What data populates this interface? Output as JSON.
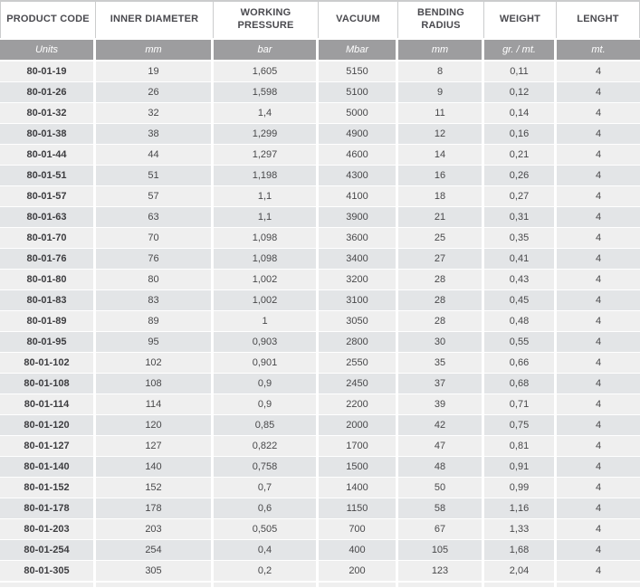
{
  "table": {
    "header": [
      "PRODUCT CODE",
      "INNER DIAMETER",
      "WORKING PRESSURE",
      "VACUUM",
      "BENDING RADIUS",
      "WEIGHT",
      "LENGHT"
    ],
    "units": [
      "Units",
      "mm",
      "bar",
      "Mbar",
      "mm",
      "gr. / mt.",
      "mt."
    ],
    "rows": [
      [
        "80-01-19",
        "19",
        "1,605",
        "5150",
        "8",
        "0,11",
        "4"
      ],
      [
        "80-01-26",
        "26",
        "1,598",
        "5100",
        "9",
        "0,12",
        "4"
      ],
      [
        "80-01-32",
        "32",
        "1,4",
        "5000",
        "11",
        "0,14",
        "4"
      ],
      [
        "80-01-38",
        "38",
        "1,299",
        "4900",
        "12",
        "0,16",
        "4"
      ],
      [
        "80-01-44",
        "44",
        "1,297",
        "4600",
        "14",
        "0,21",
        "4"
      ],
      [
        "80-01-51",
        "51",
        "1,198",
        "4300",
        "16",
        "0,26",
        "4"
      ],
      [
        "80-01-57",
        "57",
        "1,1",
        "4100",
        "18",
        "0,27",
        "4"
      ],
      [
        "80-01-63",
        "63",
        "1,1",
        "3900",
        "21",
        "0,31",
        "4"
      ],
      [
        "80-01-70",
        "70",
        "1,098",
        "3600",
        "25",
        "0,35",
        "4"
      ],
      [
        "80-01-76",
        "76",
        "1,098",
        "3400",
        "27",
        "0,41",
        "4"
      ],
      [
        "80-01-80",
        "80",
        "1,002",
        "3200",
        "28",
        "0,43",
        "4"
      ],
      [
        "80-01-83",
        "83",
        "1,002",
        "3100",
        "28",
        "0,45",
        "4"
      ],
      [
        "80-01-89",
        "89",
        "1",
        "3050",
        "28",
        "0,48",
        "4"
      ],
      [
        "80-01-95",
        "95",
        "0,903",
        "2800",
        "30",
        "0,55",
        "4"
      ],
      [
        "80-01-102",
        "102",
        "0,901",
        "2550",
        "35",
        "0,66",
        "4"
      ],
      [
        "80-01-108",
        "108",
        "0,9",
        "2450",
        "37",
        "0,68",
        "4"
      ],
      [
        "80-01-114",
        "114",
        "0,9",
        "2200",
        "39",
        "0,71",
        "4"
      ],
      [
        "80-01-120",
        "120",
        "0,85",
        "2000",
        "42",
        "0,75",
        "4"
      ],
      [
        "80-01-127",
        "127",
        "0,822",
        "1700",
        "47",
        "0,81",
        "4"
      ],
      [
        "80-01-140",
        "140",
        "0,758",
        "1500",
        "48",
        "0,91",
        "4"
      ],
      [
        "80-01-152",
        "152",
        "0,7",
        "1400",
        "50",
        "0,99",
        "4"
      ],
      [
        "80-01-178",
        "178",
        "0,6",
        "1150",
        "58",
        "1,16",
        "4"
      ],
      [
        "80-01-203",
        "203",
        "0,505",
        "700",
        "67",
        "1,33",
        "4"
      ],
      [
        "80-01-254",
        "254",
        "0,4",
        "400",
        "105",
        "1,68",
        "4"
      ],
      [
        "80-01-305",
        "305",
        "0,2",
        "200",
        "123",
        "2,04",
        "4"
      ]
    ]
  },
  "colors": {
    "border": "#cbcccd",
    "header_text": "#4a4a4f",
    "units_bg": "#9d9d9f",
    "units_text": "#ffffff",
    "row_light": "#efefef",
    "row_dark": "#e3e5e7",
    "data_text": "#48484a",
    "code_text": "#3d3d40"
  }
}
